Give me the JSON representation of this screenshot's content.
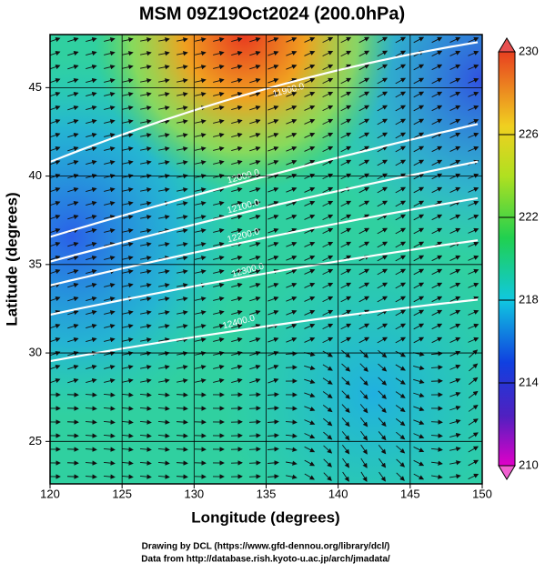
{
  "chart_data": {
    "type": "map",
    "title": "MSM 09Z19Oct2024 (200.0hPa)",
    "x_label": "Longitude (degrees)",
    "y_label": "Latitude  (degrees)",
    "xlim": [
      120,
      150
    ],
    "xticks": [
      120,
      125,
      130,
      135,
      140,
      145,
      150
    ],
    "ylim": [
      22.6,
      48.0
    ],
    "yticks": [
      25,
      30,
      35,
      40,
      45
    ],
    "colorbar": {
      "lim": [
        210,
        230
      ],
      "ticks": [
        210,
        214,
        218,
        222,
        226,
        230
      ]
    },
    "contours": [
      {
        "value": 11900,
        "label": "11900.0"
      },
      {
        "value": 12000,
        "label": "12000.0"
      },
      {
        "value": 12100,
        "label": "12100.0"
      },
      {
        "value": 12200,
        "label": "12200.0"
      },
      {
        "value": 12300,
        "label": "12300.0"
      },
      {
        "value": 12400,
        "label": "12400.0"
      }
    ],
    "footer": [
      "Drawing by DCL (https://www.gfd-dennou.org/library/dcl/)",
      "Data from http://database.rish.kyoto-u.ac.jp/arch/jmadata/"
    ]
  }
}
